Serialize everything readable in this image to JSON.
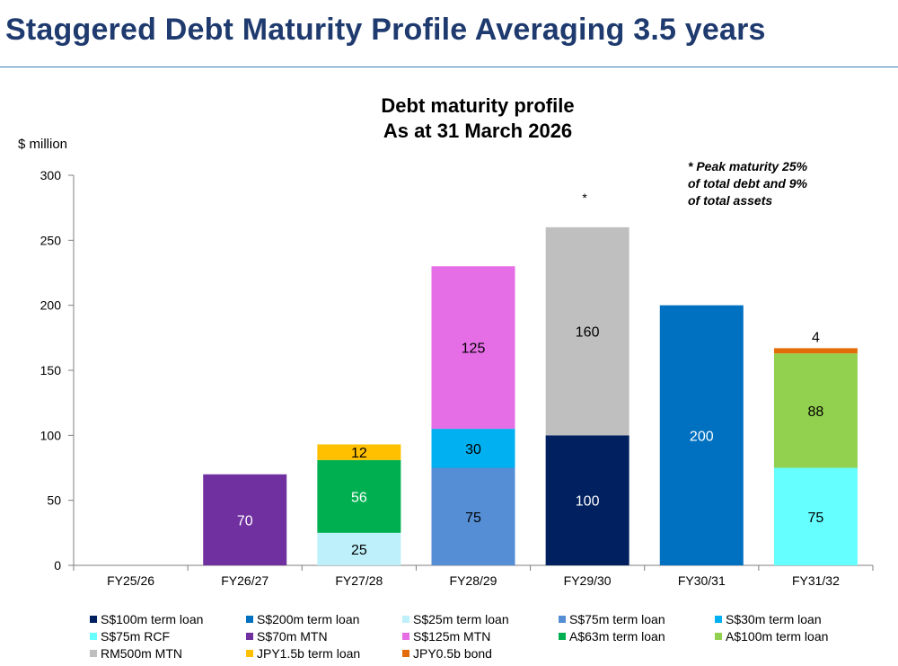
{
  "page": {
    "title": "Staggered Debt Maturity Profile Averaging 3.5 years"
  },
  "chart_data": {
    "type": "bar",
    "stacked": true,
    "title": "Debt maturity profile",
    "subtitle": "As at 31 March 2026",
    "ylabel": "$ million",
    "xlabel": "",
    "ylim": [
      0,
      300
    ],
    "yticks": [
      0,
      50,
      100,
      150,
      200,
      250,
      300
    ],
    "grid": false,
    "legend_position": "bottom",
    "categories": [
      "FY25/26",
      "FY26/27",
      "FY27/28",
      "FY28/29",
      "FY29/30",
      "FY30/31",
      "FY31/32"
    ],
    "series": [
      {
        "name": "S$100m term loan",
        "color": "#002060",
        "label_color": "#ffffff",
        "values": [
          0,
          0,
          0,
          0,
          100,
          0,
          0
        ]
      },
      {
        "name": "S$200m term loan",
        "color": "#0070c0",
        "label_color": "#ffffff",
        "values": [
          0,
          0,
          0,
          0,
          0,
          200,
          0
        ]
      },
      {
        "name": "S$25m term loan",
        "color": "#bdf0fa",
        "label_color": "#000000",
        "values": [
          0,
          0,
          25,
          0,
          0,
          0,
          0
        ]
      },
      {
        "name": "S$75m term loan",
        "color": "#558ed5",
        "label_color": "#000000",
        "values": [
          0,
          0,
          0,
          75,
          0,
          0,
          0
        ]
      },
      {
        "name": "S$30m term loan",
        "color": "#00b0f0",
        "label_color": "#000000",
        "values": [
          0,
          0,
          0,
          30,
          0,
          0,
          0
        ]
      },
      {
        "name": "S$75m RCF",
        "color": "#66ffff",
        "label_color": "#000000",
        "values": [
          0,
          0,
          0,
          0,
          0,
          0,
          75
        ]
      },
      {
        "name": "S$70m MTN",
        "color": "#7030a0",
        "label_color": "#ffffff",
        "values": [
          0,
          70,
          0,
          0,
          0,
          0,
          0
        ]
      },
      {
        "name": "S$125m MTN",
        "color": "#e56ee6",
        "label_color": "#000000",
        "values": [
          0,
          0,
          0,
          125,
          0,
          0,
          0
        ]
      },
      {
        "name": "A$63m term loan",
        "color": "#00b050",
        "label_color": "#ffffff",
        "values": [
          0,
          0,
          56,
          0,
          0,
          0,
          0
        ]
      },
      {
        "name": "A$100m term loan",
        "color": "#92d050",
        "label_color": "#000000",
        "values": [
          0,
          0,
          0,
          0,
          0,
          0,
          88
        ]
      },
      {
        "name": "RM500m MTN",
        "color": "#bfbfbf",
        "label_color": "#000000",
        "values": [
          0,
          0,
          0,
          0,
          160,
          0,
          0
        ]
      },
      {
        "name": "JPY1.5b term loan",
        "color": "#ffc000",
        "label_color": "#000000",
        "values": [
          0,
          0,
          12,
          0,
          0,
          0,
          0
        ]
      },
      {
        "name": "JPY0.5b bond",
        "color": "#e36c09",
        "label_color": "#000000",
        "values": [
          0,
          0,
          0,
          0,
          0,
          0,
          4
        ]
      }
    ],
    "annotations": [
      {
        "category": "FY29/30",
        "text": "*"
      }
    ],
    "note_lines": [
      "* Peak maturity 25%",
      "of total debt and 9%",
      "of total assets"
    ]
  }
}
